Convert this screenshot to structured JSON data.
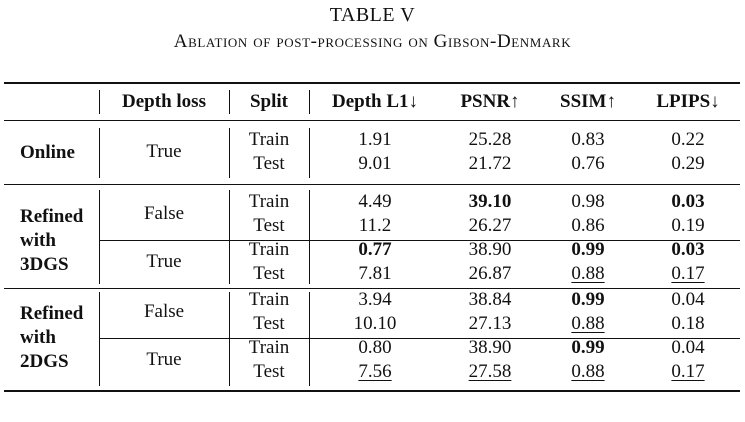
{
  "caption": {
    "label": "TABLE V",
    "title": "Ablation of post-processing on Gibson-Denmark"
  },
  "table": {
    "headers": [
      "Depth loss",
      "Split",
      "Depth L1↓",
      "PSNR↑",
      "SSIM↑",
      "LPIPS↓"
    ],
    "groups": [
      {
        "name": "Online",
        "subgroups": [
          {
            "depth_loss": "True",
            "rows": [
              {
                "split": "Train",
                "depth_l1": "1.91",
                "psnr": "25.28",
                "ssim": "0.83",
                "lpips": "0.22"
              },
              {
                "split": "Test",
                "depth_l1": "9.01",
                "psnr": "21.72",
                "ssim": "0.76",
                "lpips": "0.29"
              }
            ]
          }
        ]
      },
      {
        "name": "Refined with 3DGS",
        "name_lines": [
          "Refined",
          "with",
          "3DGS"
        ],
        "subgroups": [
          {
            "depth_loss": "False",
            "rows": [
              {
                "split": "Train",
                "depth_l1": "4.49",
                "psnr": "39.10",
                "ssim": "0.98",
                "lpips": "0.03"
              },
              {
                "split": "Test",
                "depth_l1": "11.2",
                "psnr": "26.27",
                "ssim": "0.86",
                "lpips": "0.19"
              }
            ]
          },
          {
            "depth_loss": "True",
            "rows": [
              {
                "split": "Train",
                "depth_l1": "0.77",
                "psnr": "38.90",
                "ssim": "0.99",
                "lpips": "0.03"
              },
              {
                "split": "Test",
                "depth_l1": "7.81",
                "psnr": "26.87",
                "ssim": "0.88",
                "lpips": "0.17"
              }
            ]
          }
        ]
      },
      {
        "name": "Refined with 2DGS",
        "name_lines": [
          "Refined",
          "with",
          "2DGS"
        ],
        "subgroups": [
          {
            "depth_loss": "False",
            "rows": [
              {
                "split": "Train",
                "depth_l1": "3.94",
                "psnr": "38.84",
                "ssim": "0.99",
                "lpips": "0.04"
              },
              {
                "split": "Test",
                "depth_l1": "10.10",
                "psnr": "27.13",
                "ssim": "0.88",
                "lpips": "0.18"
              }
            ]
          },
          {
            "depth_loss": "True",
            "rows": [
              {
                "split": "Train",
                "depth_l1": "0.80",
                "psnr": "38.90",
                "ssim": "0.99",
                "lpips": "0.04"
              },
              {
                "split": "Test",
                "depth_l1": "7.56",
                "psnr": "27.58",
                "ssim": "0.88",
                "lpips": "0.17"
              }
            ]
          }
        ]
      }
    ]
  }
}
